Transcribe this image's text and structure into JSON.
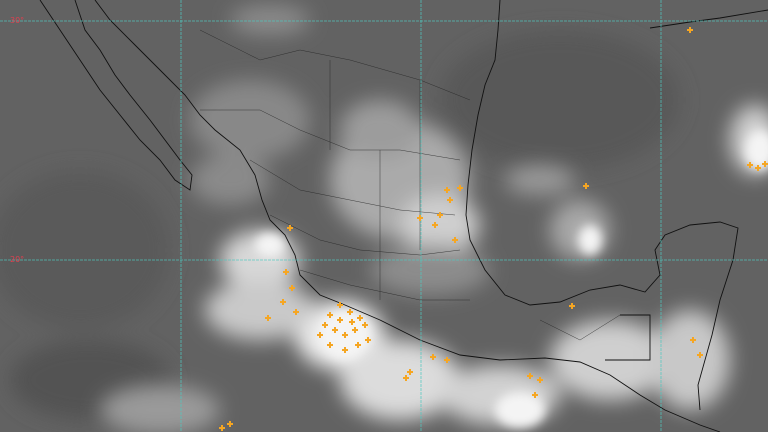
{
  "map": {
    "lat_labels": [
      "30°",
      "20°"
    ],
    "colors": {
      "background": "#606060",
      "grid": "#4fc9c0",
      "coastline": "#111111",
      "lightning": "#f5a623",
      "label": "#e04050"
    }
  }
}
